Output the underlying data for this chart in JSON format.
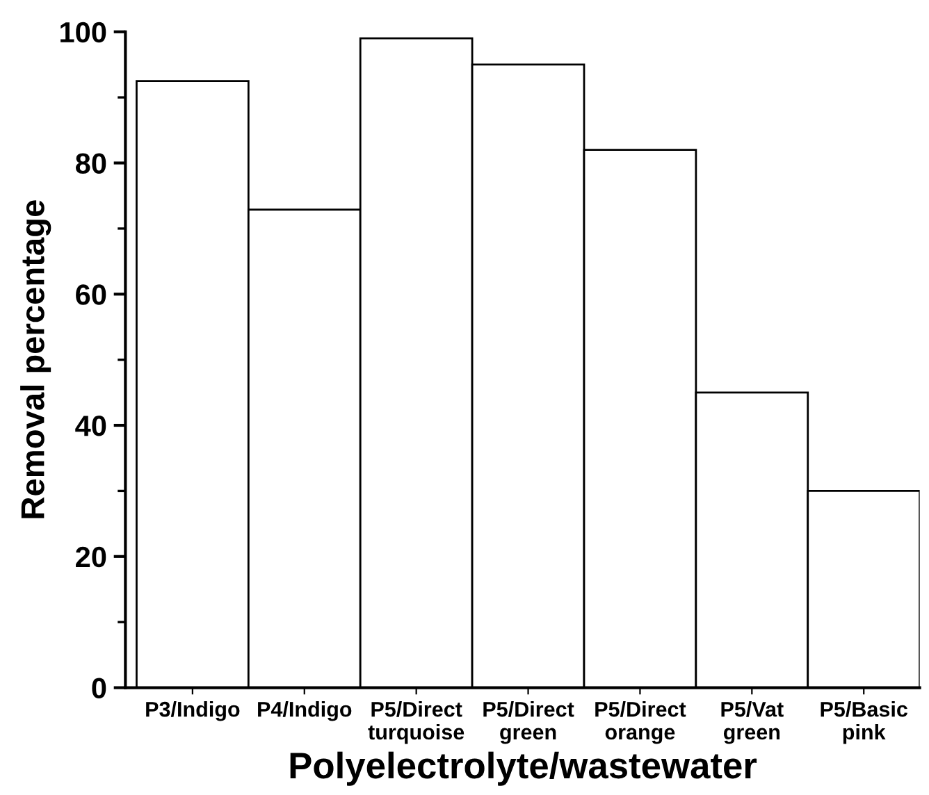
{
  "chart_data": {
    "type": "bar",
    "xlabel": "Polyelectrolyte/wastewater",
    "ylabel": "Removal percentage",
    "categories": [
      "P3/Indigo",
      "P4/Indigo",
      "P5/Direct\nturquoise",
      "P5/Direct\ngreen",
      "P5/Direct\norange",
      "P5/Vat\ngreen",
      "P5/Basic\npink"
    ],
    "values": [
      92.5,
      72.9,
      99,
      95,
      82,
      45,
      30
    ],
    "colors": [
      "#ffffff",
      "#ffffff",
      "#ffffff",
      "#ffffff",
      "#ffffff",
      "#ffffff",
      "#ffffff"
    ],
    "ylim": [
      0,
      100
    ],
    "yticks": [
      0,
      20,
      40,
      60,
      80,
      100
    ],
    "grid": false,
    "legend": false
  }
}
